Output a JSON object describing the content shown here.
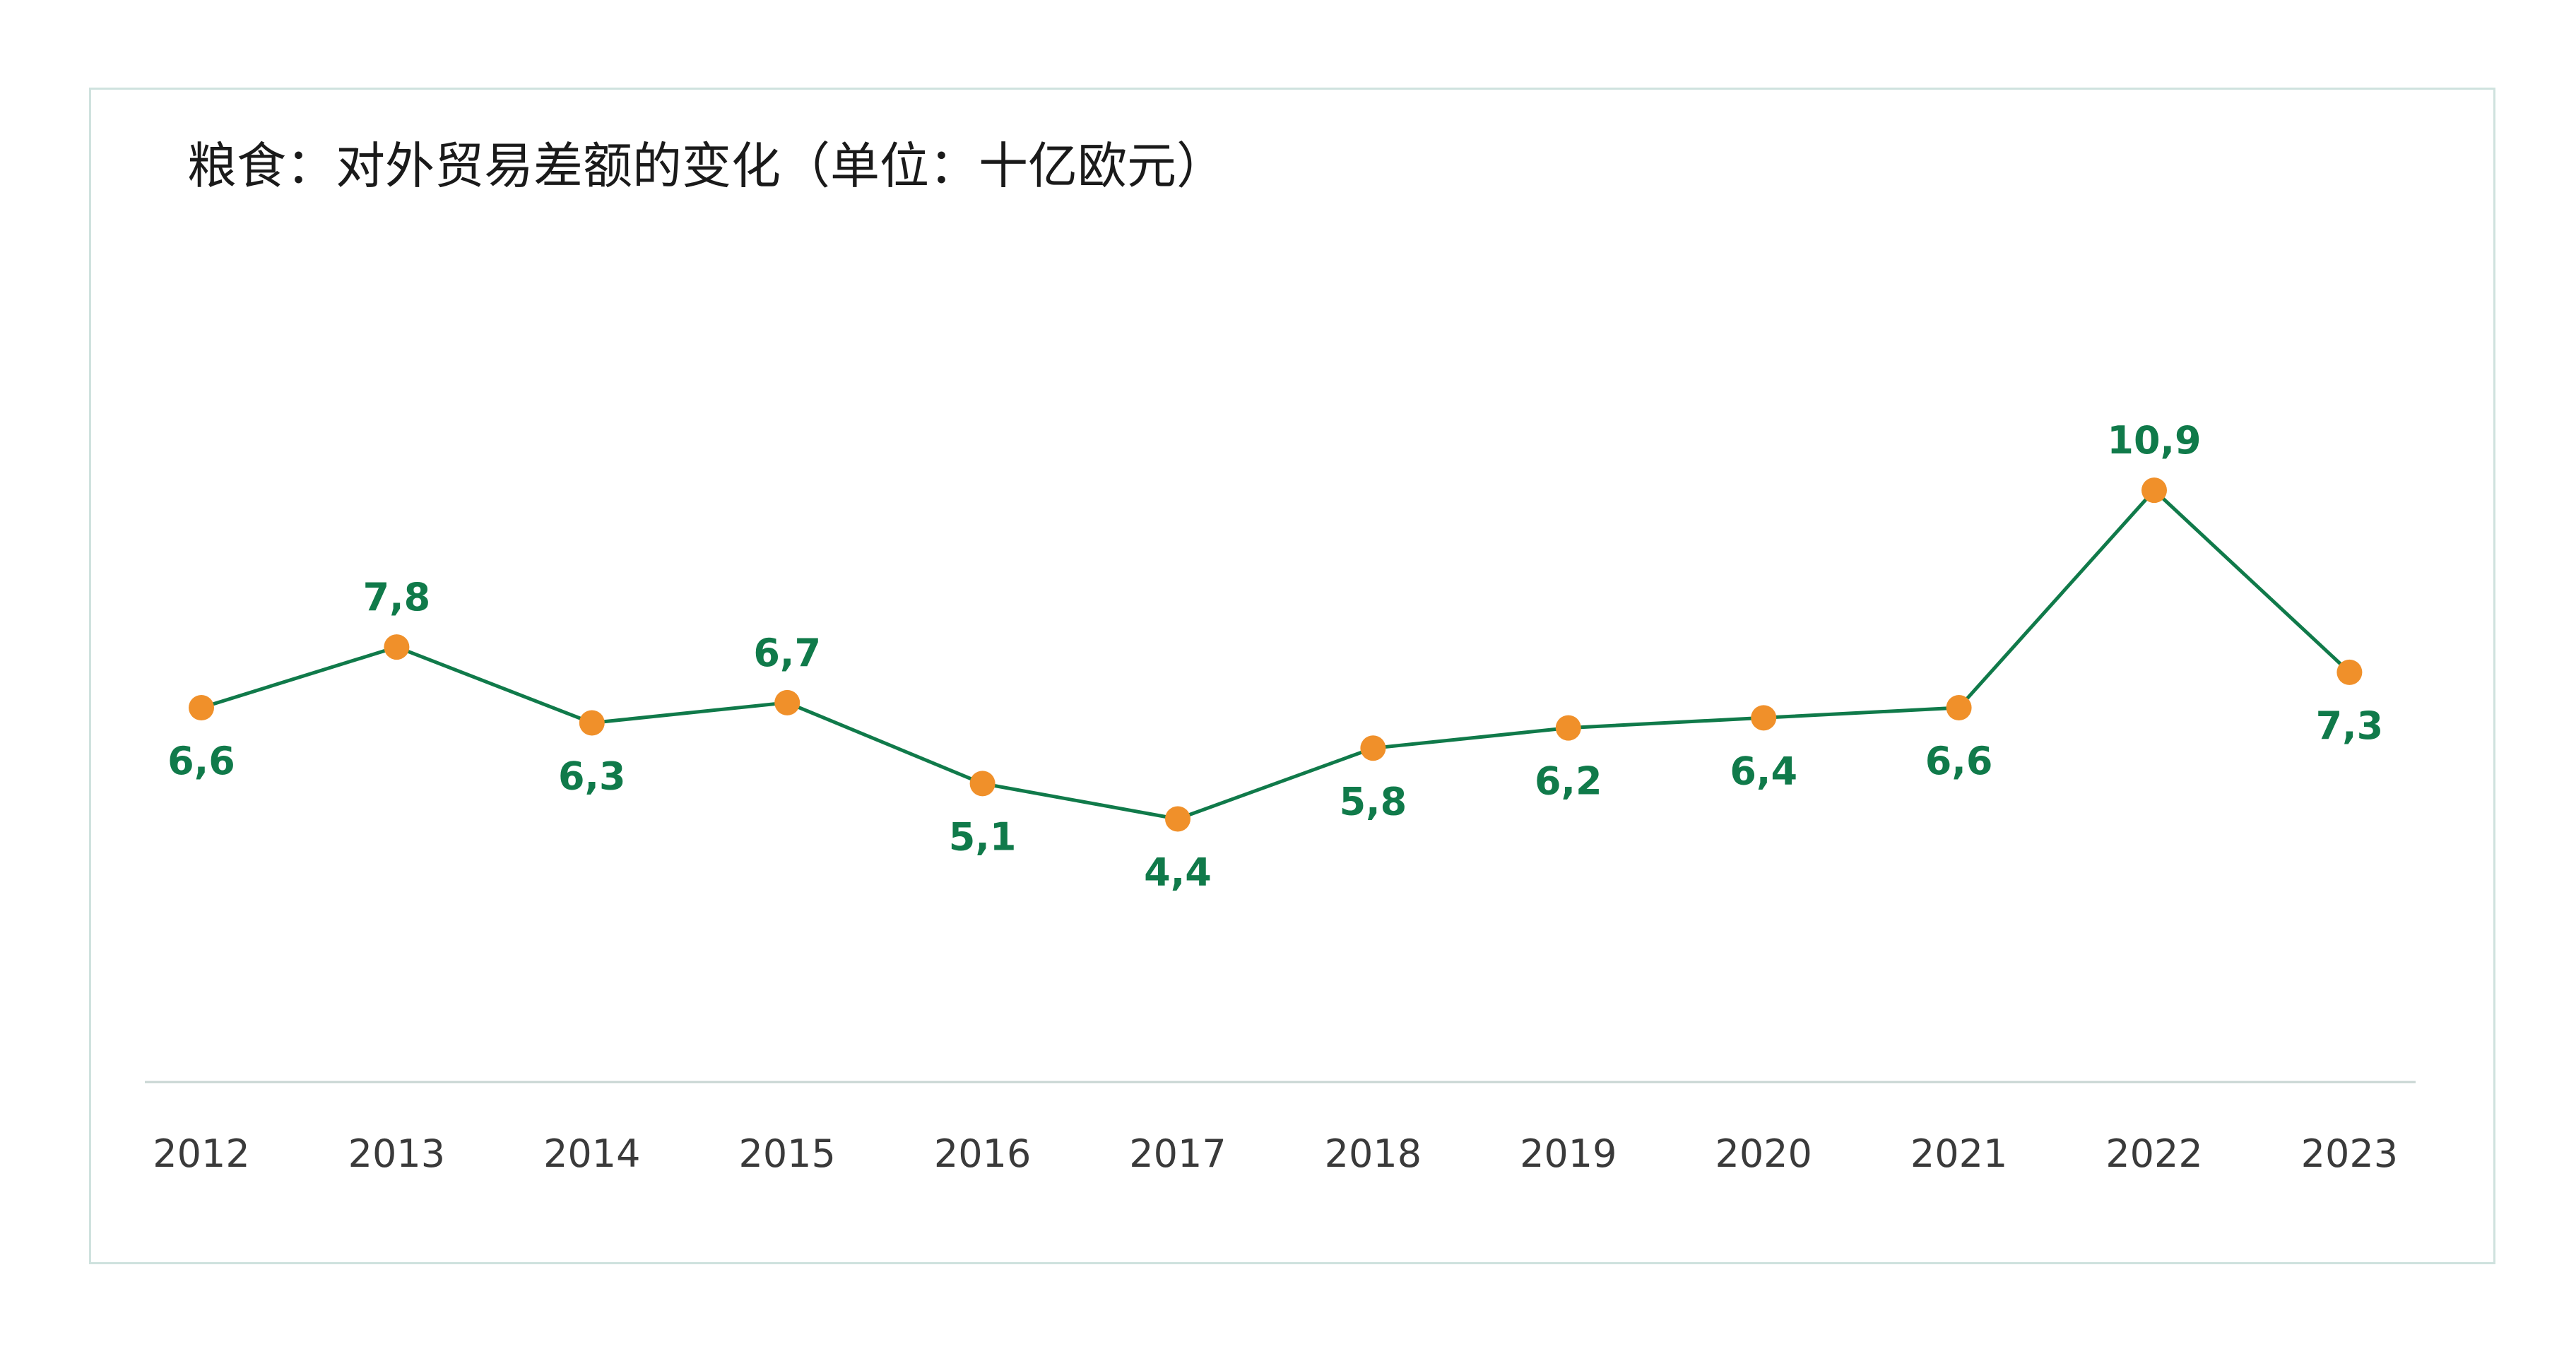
{
  "chart_data": {
    "type": "line",
    "title": "粮食：对外贸易差额的变化（单位：十亿欧元）",
    "x": [
      "2012",
      "2013",
      "2014",
      "2015",
      "2016",
      "2017",
      "2018",
      "2019",
      "2020",
      "2021",
      "2022",
      "2023"
    ],
    "series": [
      {
        "values": [
          6.6,
          7.8,
          6.3,
          6.7,
          5.1,
          4.4,
          5.8,
          6.2,
          6.4,
          6.6,
          10.9,
          7.3
        ],
        "labels": [
          "6,6",
          "7,8",
          "6,3",
          "6,7",
          "5,1",
          "4,4",
          "5,8",
          "6,2",
          "6,4",
          "6,6",
          "10,9",
          "7,3"
        ],
        "label_position": [
          "below",
          "above",
          "below",
          "above",
          "below",
          "below",
          "below",
          "below",
          "below",
          "below",
          "above",
          "below"
        ]
      }
    ],
    "grid": false,
    "legend": "none",
    "colors": {
      "line": "#107a4a",
      "marker": "#f0902a",
      "data_label": "#107a4a",
      "tick_label": "#3a3a3a",
      "axis": "#c8d6d3",
      "border": "#cfe2de"
    }
  }
}
